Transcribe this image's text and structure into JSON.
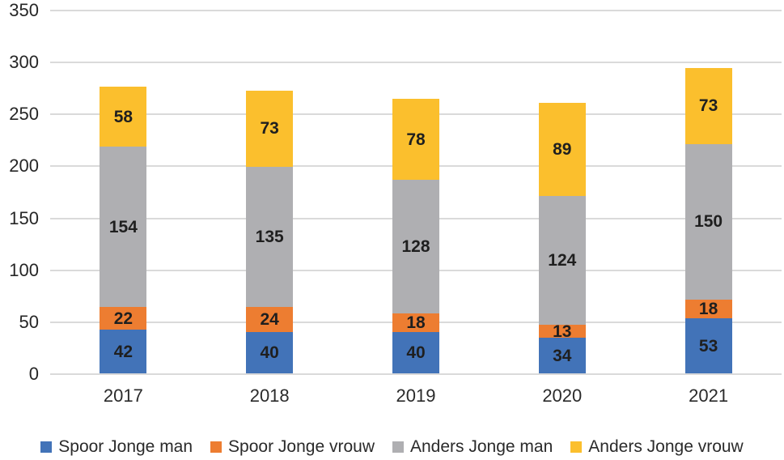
{
  "chart_data": {
    "type": "bar",
    "stacked": true,
    "title": "",
    "xlabel": "",
    "ylabel": "",
    "categories": [
      "2017",
      "2018",
      "2019",
      "2020",
      "2021"
    ],
    "series": [
      {
        "name": "Spoor Jonge man",
        "color": "#4273B8",
        "values": [
          42,
          40,
          40,
          34,
          53
        ]
      },
      {
        "name": "Spoor Jonge vrouw",
        "color": "#ED7D31",
        "values": [
          22,
          24,
          18,
          13,
          18
        ]
      },
      {
        "name": "Anders Jonge man",
        "color": "#AFAFB2",
        "values": [
          154,
          135,
          128,
          124,
          150
        ]
      },
      {
        "name": "Anders Jonge vrouw",
        "color": "#FBBF2D",
        "values": [
          58,
          73,
          78,
          89,
          73
        ]
      }
    ],
    "ylim": [
      0,
      350
    ],
    "yticks": [
      0,
      50,
      100,
      150,
      200,
      250,
      300,
      350
    ],
    "grid": true,
    "data_labels": true,
    "legend_position": "bottom"
  },
  "colors": {
    "background": "#FFFFFF",
    "gridline": "#DADADA",
    "axis_text": "#262626",
    "data_label_text": "#1F1F1F"
  }
}
